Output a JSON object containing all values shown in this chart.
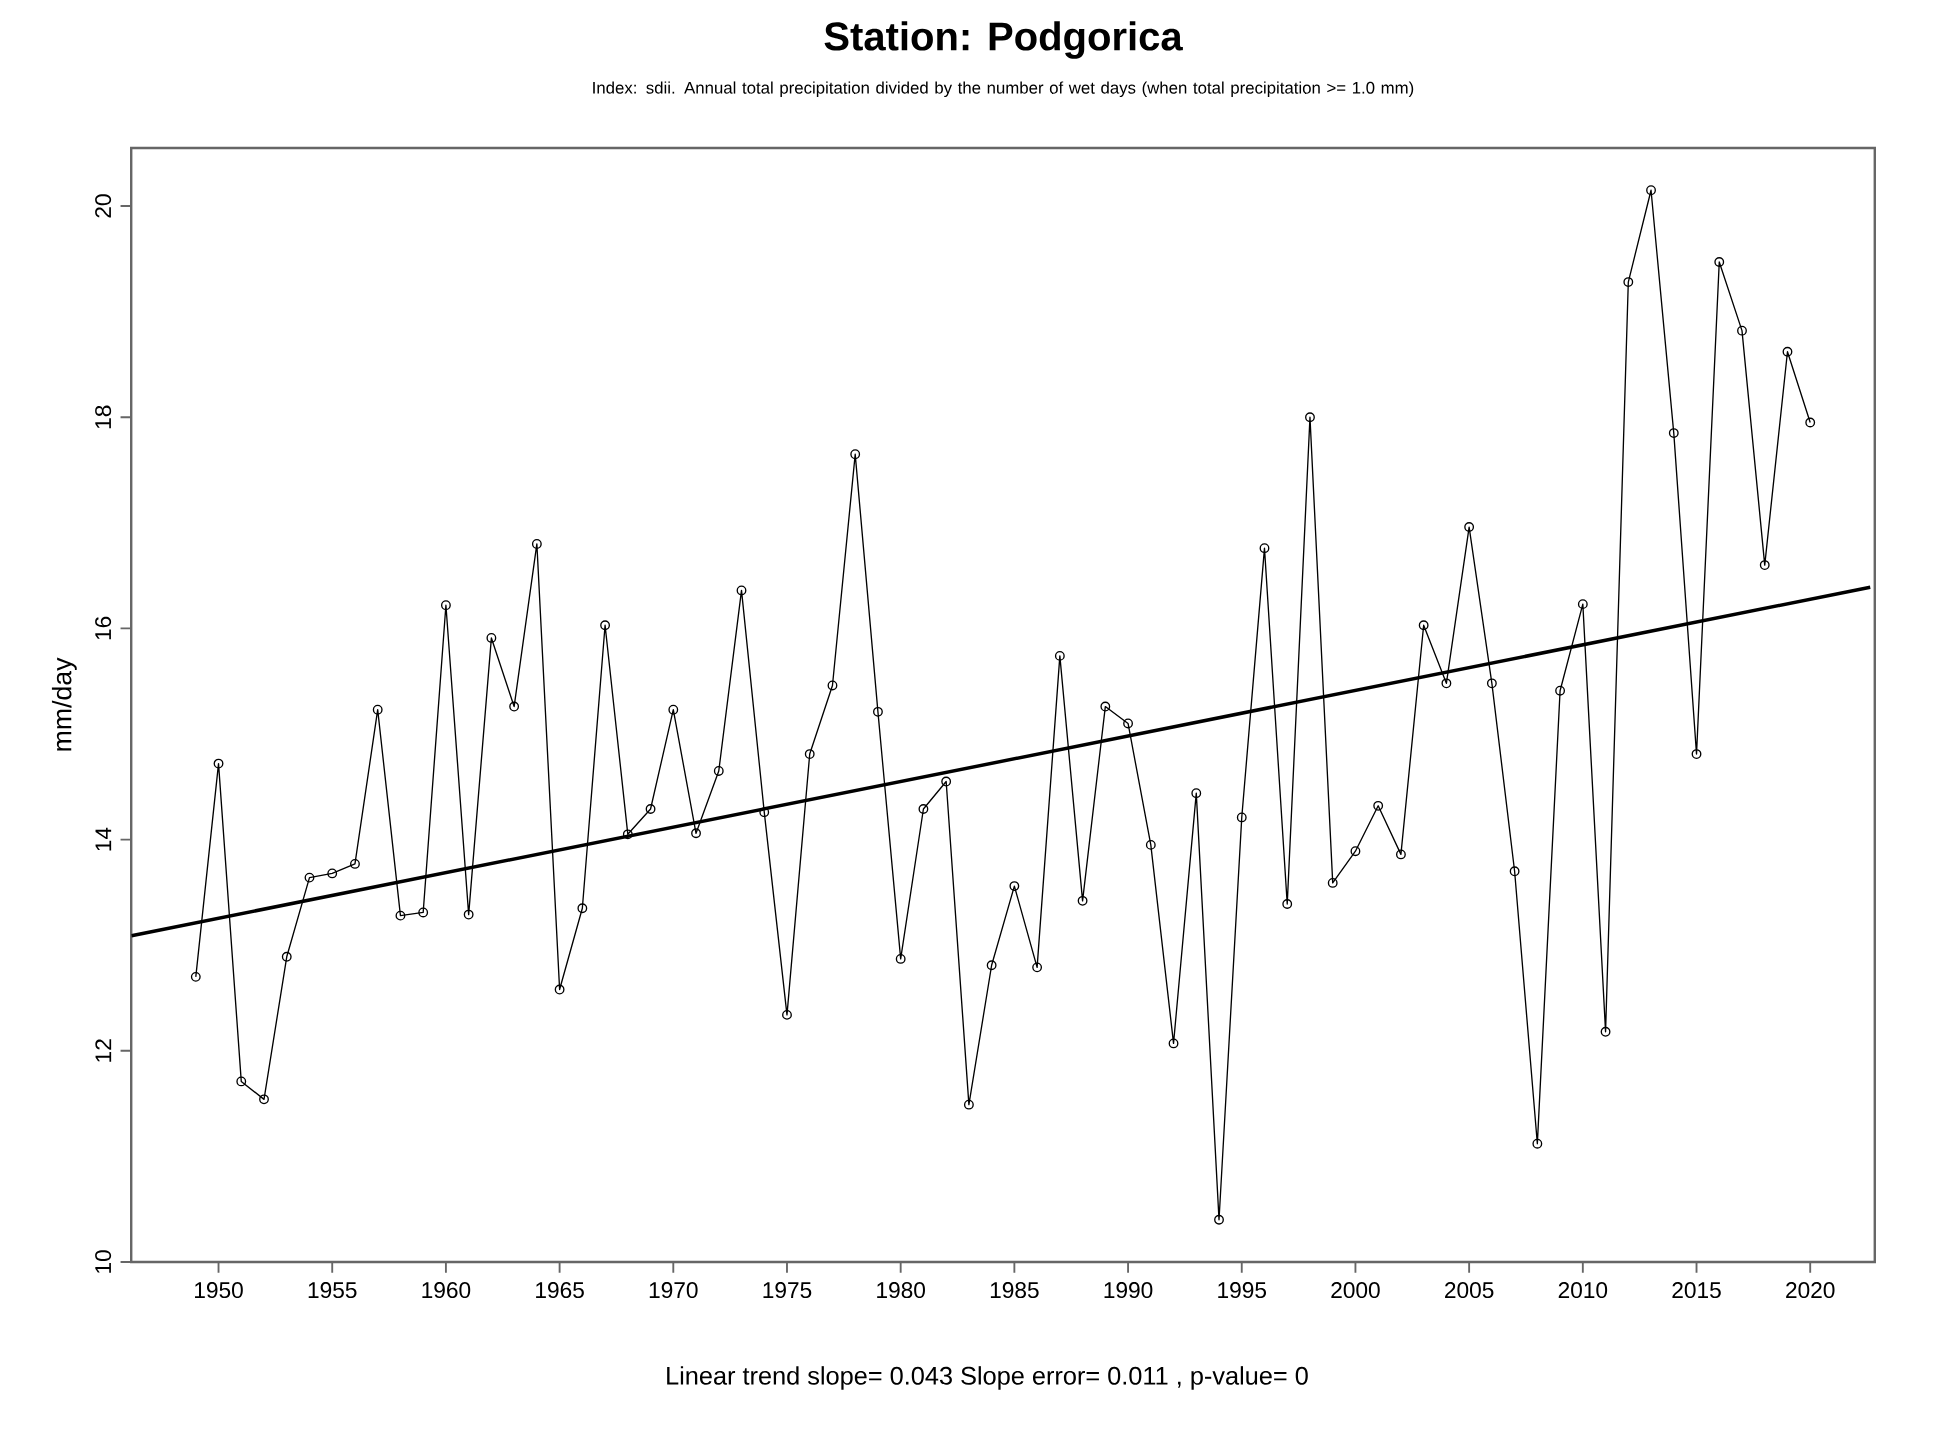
{
  "chart_data": {
    "type": "line",
    "title": "Station: Podgorica",
    "subtitle": "Index: sdii. Annual total precipitation divided by the number of wet days (when total precipitation >= 1.0 mm)",
    "ylabel": "mm/day",
    "annotations": [
      "Linear trend slope= 0.043    Slope error= 0.011 ,   p-value= 0"
    ],
    "x": [
      1949,
      1950,
      1951,
      1952,
      1953,
      1954,
      1955,
      1956,
      1957,
      1958,
      1959,
      1960,
      1961,
      1962,
      1963,
      1964,
      1965,
      1966,
      1967,
      1968,
      1969,
      1970,
      1971,
      1972,
      1973,
      1974,
      1975,
      1976,
      1977,
      1978,
      1979,
      1980,
      1981,
      1982,
      1983,
      1984,
      1985,
      1986,
      1987,
      1988,
      1989,
      1990,
      1991,
      1992,
      1993,
      1994,
      1995,
      1996,
      1997,
      1998,
      1999,
      2000,
      2001,
      2002,
      2003,
      2004,
      2005,
      2006,
      2007,
      2008,
      2009,
      2010,
      2011,
      2012,
      2013,
      2014,
      2015,
      2016,
      2017,
      2018,
      2019,
      2020
    ],
    "series": [
      {
        "color": "#000000",
        "values": [
          12.7,
          14.72,
          11.71,
          11.54,
          12.89,
          13.64,
          13.68,
          13.77,
          15.23,
          13.28,
          13.31,
          16.22,
          13.29,
          15.91,
          15.26,
          16.8,
          12.58,
          13.35,
          16.03,
          14.05,
          14.29,
          15.23,
          14.06,
          14.65,
          16.36,
          14.26,
          12.34,
          14.81,
          15.46,
          17.65,
          15.21,
          12.87,
          14.29,
          14.55,
          11.49,
          12.81,
          13.56,
          12.79,
          15.74,
          13.42,
          15.26,
          15.1,
          13.95,
          12.07,
          14.44,
          10.4,
          14.21,
          16.76,
          13.39,
          18.0,
          13.59,
          13.89,
          14.32,
          13.86,
          16.03,
          15.48,
          16.96,
          15.48,
          13.7,
          11.12,
          15.41,
          16.23,
          12.18,
          19.28,
          20.15,
          17.85,
          14.81,
          19.47,
          18.82,
          16.6,
          18.62,
          17.95
        ]
      },
      {
        "type": "line",
        "marker": "none",
        "color": "#000000",
        "x": [
          1946.17,
          2022.64
        ],
        "values": [
          13.09,
          16.39
        ]
      }
    ],
    "marker": "circle",
    "xlim": [
      1946.16,
      2022.84
    ],
    "ylim": [
      10,
      20.55
    ],
    "xticks": [
      1950,
      1955,
      1960,
      1965,
      1970,
      1975,
      1980,
      1985,
      1990,
      1995,
      2000,
      2005,
      2010,
      2015,
      2020
    ],
    "yticks": [
      10,
      12,
      14,
      16,
      18,
      20
    ]
  }
}
